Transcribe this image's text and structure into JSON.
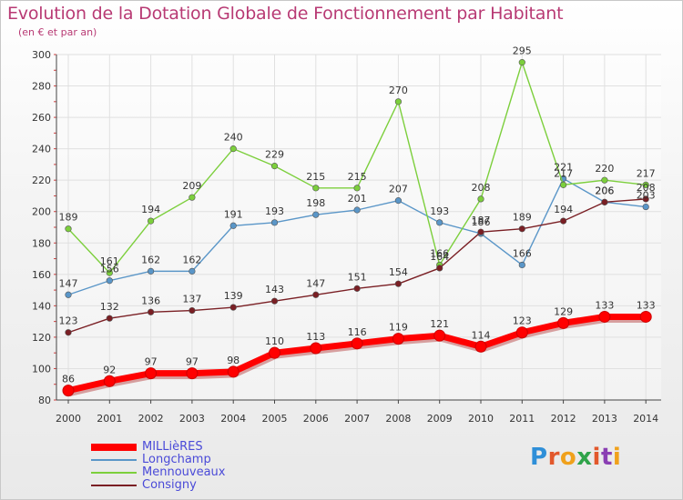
{
  "header": {
    "title": "Evolution de la Dotation Globale de Fonctionnement par Habitant",
    "subtitle": "(en € et par an)"
  },
  "logo": {
    "text": "Proxiti",
    "colors": [
      "#2f8fd8",
      "#e2582c",
      "#f0a11c",
      "#2fa34a",
      "#e2582c",
      "#8a3fb3",
      "#f0a11c"
    ]
  },
  "colors": {
    "axis": "#444444",
    "grid": "#e0e0e0",
    "label": "#333333"
  },
  "chart_data": {
    "type": "line",
    "title": "Evolution de la Dotation Globale de Fonctionnement par Habitant",
    "subtitle": "(en € et par an)",
    "x": [
      "2000",
      "2001",
      "2002",
      "2003",
      "2004",
      "2005",
      "2006",
      "2007",
      "2008",
      "2009",
      "2010",
      "2011",
      "2012",
      "2013",
      "2014"
    ],
    "ylim": [
      80,
      300
    ],
    "yticks": [
      80,
      100,
      120,
      140,
      160,
      180,
      200,
      220,
      240,
      260,
      280,
      300
    ],
    "grid": true,
    "legend_position": "bottom-left",
    "series": [
      {
        "name": "MILLièRES",
        "color": "#ff0000",
        "width": 7,
        "marker": 6,
        "values": [
          86,
          92,
          97,
          97,
          98,
          110,
          113,
          116,
          119,
          121,
          114,
          123,
          129,
          133,
          133
        ],
        "labels": [
          "86",
          "92",
          "97",
          "97",
          "98",
          "110",
          "113",
          "116",
          "119",
          "121",
          "114",
          "123",
          "129",
          "133",
          "133"
        ]
      },
      {
        "name": "Longchamp",
        "color": "#5a96c8",
        "width": 1.4,
        "marker": 3.3,
        "values": [
          147,
          156,
          162,
          162,
          191,
          193,
          198,
          201,
          207,
          193,
          186,
          166,
          221,
          206,
          203
        ],
        "labels": [
          "147",
          "156",
          "162",
          "162",
          "191",
          "193",
          "198",
          "201",
          "207",
          "193",
          "186",
          "166",
          "221",
          "206",
          "203"
        ]
      },
      {
        "name": "Mennouveaux",
        "color": "#7ccf3c",
        "width": 1.4,
        "marker": 3.3,
        "values": [
          189,
          161,
          194,
          209,
          240,
          229,
          215,
          215,
          270,
          166,
          208,
          295,
          217,
          220,
          217
        ],
        "labels": [
          "189",
          "161",
          "194",
          "209",
          "240",
          "229",
          "215",
          "215",
          "270",
          "166",
          "208",
          "295",
          "217",
          "220",
          "217"
        ]
      },
      {
        "name": "Consigny",
        "color": "#7a1f24",
        "width": 1.4,
        "marker": 3.3,
        "values": [
          123,
          132,
          136,
          137,
          139,
          143,
          147,
          151,
          154,
          164,
          187,
          189,
          194,
          206,
          208
        ],
        "labels": [
          "123",
          "132",
          "136",
          "137",
          "139",
          "143",
          "147",
          "151",
          "154",
          "164",
          "187",
          "189",
          "194",
          "206",
          "208"
        ]
      }
    ]
  }
}
